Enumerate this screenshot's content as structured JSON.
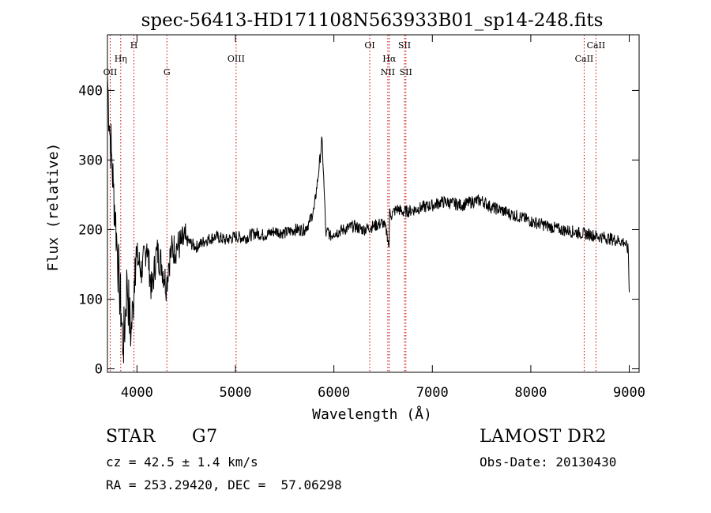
{
  "chart_data": {
    "type": "line",
    "title": "spec-56413-HD171108N563933B01_sp14-248.fits",
    "xlabel": "Wavelength (Å)",
    "ylabel": "Flux (relative)",
    "xlim": [
      3700,
      9100
    ],
    "ylim": [
      -5,
      480
    ],
    "xticks": [
      4000,
      5000,
      6000,
      7000,
      8000,
      9000
    ],
    "yticks": [
      0,
      100,
      200,
      300,
      400
    ],
    "grid": false,
    "line_color": "#000000",
    "marker_color": "#cc0000",
    "series": [
      {
        "x": [
          3700,
          3720,
          3740,
          3760,
          3780,
          3800,
          3820,
          3840,
          3860,
          3880,
          3900,
          3920,
          3940,
          3960,
          3980,
          4000,
          4050,
          4100,
          4150,
          4200,
          4250,
          4300,
          4320,
          4350,
          4400,
          4450,
          4500,
          4600,
          4700,
          4800,
          4900,
          5000,
          5100,
          5200,
          5300,
          5400,
          5500,
          5600,
          5700,
          5750,
          5800,
          5850,
          5880,
          5900,
          5920,
          5940,
          5960,
          6000,
          6100,
          6200,
          6300,
          6400,
          6500,
          6540,
          6560,
          6565,
          6580,
          6600,
          6650,
          6700,
          6800,
          6900,
          7000,
          7100,
          7200,
          7300,
          7400,
          7500,
          7600,
          7700,
          7800,
          7900,
          8000,
          8100,
          8200,
          8300,
          8400,
          8500,
          8600,
          8700,
          8800,
          8900,
          8950,
          8990,
          9000
        ],
        "y": [
          420,
          350,
          310,
          260,
          220,
          170,
          120,
          80,
          30,
          70,
          130,
          80,
          50,
          90,
          160,
          160,
          140,
          180,
          110,
          170,
          150,
          120,
          150,
          170,
          175,
          180,
          185,
          175,
          185,
          190,
          185,
          190,
          188,
          195,
          192,
          198,
          195,
          200,
          200,
          210,
          230,
          290,
          330,
          260,
          190,
          200,
          190,
          195,
          200,
          205,
          200,
          205,
          210,
          195,
          175,
          225,
          220,
          225,
          230,
          225,
          228,
          232,
          235,
          240,
          238,
          235,
          240,
          242,
          232,
          228,
          222,
          218,
          212,
          208,
          204,
          200,
          198,
          195,
          193,
          190,
          187,
          184,
          182,
          170,
          110
        ]
      }
    ],
    "lines": [
      {
        "label": "OII",
        "x": 3728,
        "row": 3
      },
      {
        "label": "Hη",
        "x": 3835,
        "row": 2
      },
      {
        "label": "H",
        "x": 3969,
        "row": 1
      },
      {
        "label": "G",
        "x": 4304,
        "row": 3
      },
      {
        "label": "OIII",
        "x": 5007,
        "row": 2
      },
      {
        "label": "OI",
        "x": 6364,
        "row": 1
      },
      {
        "label": "Hα",
        "x": 6563,
        "row": 2
      },
      {
        "label": "NII",
        "x": 6548,
        "row": 3
      },
      {
        "label": "SII",
        "x": 6717,
        "row": 1
      },
      {
        "label": "SII",
        "x": 6731,
        "row": 3
      },
      {
        "label": "CaII",
        "x": 8542,
        "row": 2
      },
      {
        "label": "CaII",
        "x": 8662,
        "row": 1
      }
    ]
  },
  "info": {
    "object_class": "STAR",
    "subclass": "G7",
    "survey": "LAMOST DR2",
    "redshift": "cz = 42.5 ± 1.4 km/s",
    "obs_date": "Obs-Date: 20130430",
    "coords": "RA = 253.29420, DEC =  57.06298"
  }
}
